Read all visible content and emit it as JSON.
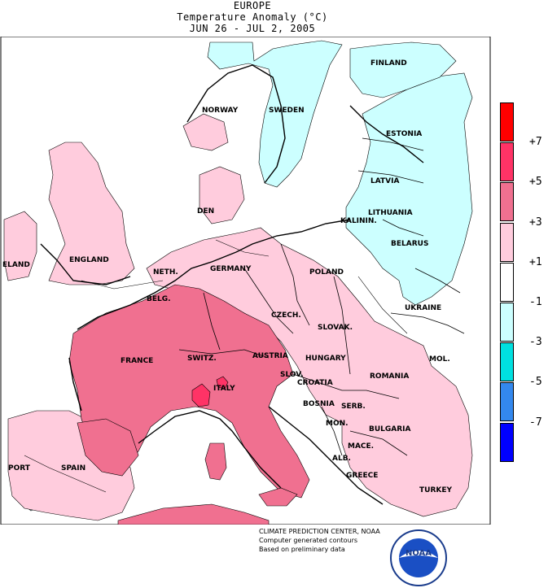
{
  "title": {
    "region": "EUROPE",
    "variable": "Temperature Anomaly (°C)",
    "period": "JUN 26 - JUL  2, 2005"
  },
  "legend": {
    "classes": [
      {
        "range": "> +7",
        "color": "#ff0000"
      },
      {
        "range": "+5 to +7",
        "color": "#ff3366"
      },
      {
        "range": "+3 to +5",
        "color": "#f07090"
      },
      {
        "range": "+1 to +3",
        "color": "#ffccdd"
      },
      {
        "range": "-1 to +1",
        "color": "#ffffff"
      },
      {
        "range": "-3 to -1",
        "color": "#ccffff"
      },
      {
        "range": "-5 to -3",
        "color": "#00e0e0"
      },
      {
        "range": "-7 to -5",
        "color": "#3388ee"
      },
      {
        "range": "< -7",
        "color": "#0000ff"
      }
    ],
    "ticks": [
      "+7",
      "+5",
      "+3",
      "+1",
      "-1",
      "-3",
      "-5",
      "-7"
    ]
  },
  "countries": {
    "finland": "FINLAND",
    "norway": "NORWAY",
    "sweden": "SWEDEN",
    "estonia": "ESTONIA",
    "latvia": "LATVIA",
    "lithuania": "LITHUANIA",
    "kalinin": "KALININ.",
    "belarus": "BELARUS",
    "den": "DEN",
    "ireland": "ELAND",
    "england": "ENGLAND",
    "neth": "NETH.",
    "germany": "GERMANY",
    "poland": "POLAND",
    "ukraine": "UKRAINE",
    "belg": "BELG.",
    "czech": "CZECH.",
    "slovak": "SLOVAK.",
    "mol": "MOL.",
    "france": "FRANCE",
    "switz": "SWITZ.",
    "austria": "AUSTRIA",
    "hungary": "HUNGARY",
    "romania": "ROMANIA",
    "slov": "SLOV.",
    "croatia": "CROATIA",
    "italy": "ITALY",
    "bosnia": "BOSNIA",
    "serb": "SERB.",
    "mon": "MON.",
    "bulgaria": "BULGARIA",
    "mace": "MACE.",
    "alb": "ALB.",
    "greece": "GREECE",
    "turkey": "TURKEY",
    "port": "PORT",
    "spain": "SPAIN"
  },
  "credits": {
    "line1": "CLIMATE PREDICTION CENTER, NOAA",
    "line2": "Computer generated contours",
    "line3": "Based on preliminary data"
  },
  "logo": {
    "text": "NOAA",
    "icon": "noaa-logo-icon"
  }
}
